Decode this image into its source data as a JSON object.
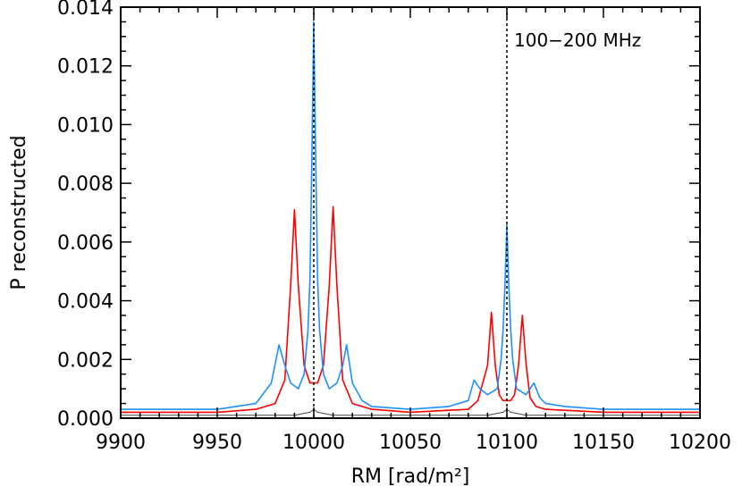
{
  "chart_data": {
    "type": "line",
    "title": "",
    "xlabel": "RM [rad/m²]",
    "ylabel": "P reconstructed",
    "xlim": [
      9900,
      10200
    ],
    "ylim": [
      0.0,
      0.014
    ],
    "xticks": [
      "9900",
      "9950",
      "10000",
      "10050",
      "10100",
      "10150",
      "10200"
    ],
    "yticks": [
      "0.000",
      "0.002",
      "0.004",
      "0.006",
      "0.008",
      "0.010",
      "0.012",
      "0.014"
    ],
    "annotation": "100−200 MHz",
    "vlines": [
      10000,
      10100
    ],
    "grid": false,
    "legend": "none",
    "series": [
      {
        "color": "#ff0000",
        "x": [
          9900,
          9950,
          9970,
          9980,
          9985,
          9988,
          9990,
          9992,
          9995,
          9998,
          10000,
          10002,
          10005,
          10008,
          10010,
          10012,
          10015,
          10020,
          10030,
          10050,
          10080,
          10085,
          10090,
          10092,
          10094,
          10096,
          10098,
          10100,
          10102,
          10104,
          10106,
          10108,
          10110,
          10112,
          10115,
          10120,
          10150,
          10200
        ],
        "y": [
          0.0002,
          0.0002,
          0.0003,
          0.0005,
          0.0013,
          0.0045,
          0.0071,
          0.0045,
          0.0018,
          0.0012,
          0.0012,
          0.0012,
          0.0018,
          0.0045,
          0.0072,
          0.0045,
          0.0013,
          0.0005,
          0.0003,
          0.0002,
          0.0003,
          0.0006,
          0.0018,
          0.0036,
          0.0018,
          0.0008,
          0.0006,
          0.0006,
          0.0006,
          0.0008,
          0.0018,
          0.0035,
          0.0018,
          0.0007,
          0.0004,
          0.0003,
          0.0002,
          0.0002
        ]
      },
      {
        "color": "#1e90ff",
        "x": [
          9900,
          9950,
          9970,
          9978,
          9982,
          9985,
          9988,
          9992,
          9995,
          9997,
          9998,
          9999,
          10000,
          10001,
          10002,
          10003,
          10005,
          10008,
          10012,
          10015,
          10017,
          10020,
          10025,
          10030,
          10050,
          10070,
          10080,
          10083,
          10086,
          10090,
          10095,
          10097,
          10098,
          10099,
          10100,
          10101,
          10102,
          10103,
          10105,
          10110,
          10114,
          10117,
          10120,
          10130,
          10150,
          10200
        ],
        "y": [
          0.0003,
          0.0003,
          0.0005,
          0.0012,
          0.0025,
          0.0018,
          0.0012,
          0.001,
          0.0015,
          0.003,
          0.0047,
          0.0087,
          0.0135,
          0.0087,
          0.0047,
          0.003,
          0.0015,
          0.001,
          0.0012,
          0.0018,
          0.0025,
          0.0012,
          0.0006,
          0.0004,
          0.0003,
          0.0004,
          0.0006,
          0.0013,
          0.001,
          0.0008,
          0.001,
          0.002,
          0.003,
          0.0045,
          0.0066,
          0.0045,
          0.003,
          0.002,
          0.001,
          0.0008,
          0.0012,
          0.0007,
          0.0005,
          0.0004,
          0.0003,
          0.0003
        ]
      },
      {
        "color": "#444444",
        "x": [
          9900,
          9990,
          9998,
          10000,
          10002,
          10010,
          10090,
          10098,
          10100,
          10102,
          10110,
          10200
        ],
        "y": [
          0.0001,
          0.0001,
          0.0002,
          0.0003,
          0.0002,
          0.0001,
          0.0001,
          0.0002,
          0.0003,
          0.0002,
          0.0001,
          0.0001
        ]
      }
    ]
  }
}
